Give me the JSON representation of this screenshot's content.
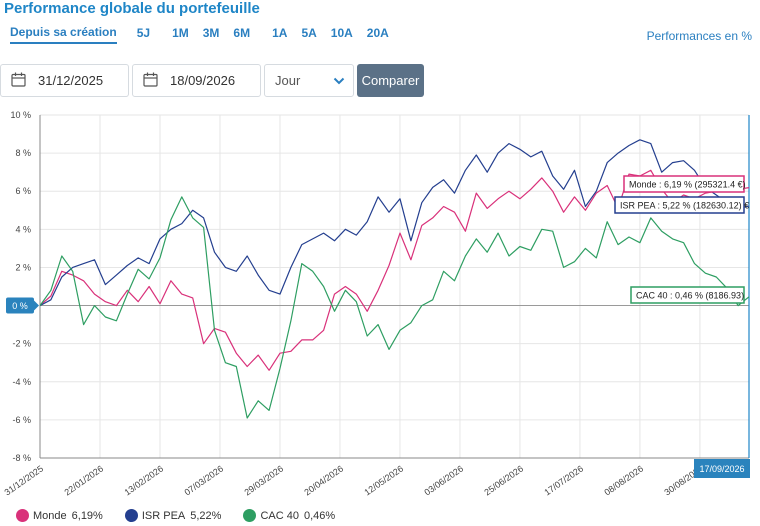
{
  "header": {
    "title": "Performance globale du portefeuille",
    "performances_note": "Performances en %"
  },
  "periods": [
    "Depuis sa création",
    "5J",
    "1M",
    "3M",
    "6M",
    "1A",
    "5A",
    "10A",
    "20A"
  ],
  "controls": {
    "date_from": "31/12/2025",
    "date_to": "18/09/2026",
    "granularity": "Jour",
    "compare_label": "Comparer"
  },
  "colors": {
    "monde": "#d9317a",
    "isr_pea": "#243f8f",
    "cac40": "#2e9e62",
    "accent": "#1f86c7",
    "button": "#5b7187"
  },
  "chart_data": {
    "type": "line",
    "ylim": [
      -8,
      10
    ],
    "yticks": [
      "10 %",
      "8 %",
      "6 %",
      "4 %",
      "2 %",
      "0 %",
      "-2 %",
      "-4 %",
      "-6 %",
      "-8 %"
    ],
    "ytick_values": [
      10,
      8,
      6,
      4,
      2,
      0,
      -2,
      -4,
      -6,
      -8
    ],
    "x_start": "2025-12-31",
    "x_end": "2026-09-17",
    "xticks": [
      {
        "label": "31/12/2025",
        "date": "2025-12-31"
      },
      {
        "label": "22/01/2026",
        "date": "2026-01-22"
      },
      {
        "label": "13/02/2026",
        "date": "2026-02-13"
      },
      {
        "label": "07/03/2026",
        "date": "2026-03-07"
      },
      {
        "label": "29/03/2026",
        "date": "2026-03-29"
      },
      {
        "label": "20/04/2026",
        "date": "2026-04-20"
      },
      {
        "label": "12/05/2026",
        "date": "2026-05-12"
      },
      {
        "label": "03/06/2026",
        "date": "2026-06-03"
      },
      {
        "label": "25/06/2026",
        "date": "2026-06-25"
      },
      {
        "label": "17/07/2026",
        "date": "2026-07-17"
      },
      {
        "label": "08/08/2026",
        "date": "2026-08-08"
      },
      {
        "label": "30/08/2026",
        "date": "2026-08-30"
      }
    ],
    "zero_label": "0 %",
    "end_date_label": "17/09/2026",
    "series": [
      {
        "name": "Monde",
        "legend_value": "6,19%",
        "color": "#d9317a",
        "end_label": "Monde : 6,19 % (295321.4 €)",
        "points": [
          [
            "2025-12-31",
            0.0
          ],
          [
            "2026-01-04",
            0.5
          ],
          [
            "2026-01-08",
            1.8
          ],
          [
            "2026-01-12",
            1.6
          ],
          [
            "2026-01-16",
            1.3
          ],
          [
            "2026-01-20",
            0.6
          ],
          [
            "2026-01-24",
            0.2
          ],
          [
            "2026-01-28",
            0.0
          ],
          [
            "2026-02-01",
            0.8
          ],
          [
            "2026-02-05",
            0.2
          ],
          [
            "2026-02-09",
            1.0
          ],
          [
            "2026-02-13",
            0.1
          ],
          [
            "2026-02-17",
            1.3
          ],
          [
            "2026-02-21",
            0.6
          ],
          [
            "2026-02-25",
            0.4
          ],
          [
            "2026-03-01",
            -2.0
          ],
          [
            "2026-03-05",
            -1.2
          ],
          [
            "2026-03-09",
            -1.4
          ],
          [
            "2026-03-13",
            -2.5
          ],
          [
            "2026-03-17",
            -3.2
          ],
          [
            "2026-03-21",
            -2.6
          ],
          [
            "2026-03-25",
            -3.4
          ],
          [
            "2026-03-29",
            -2.5
          ],
          [
            "2026-04-02",
            -2.4
          ],
          [
            "2026-04-06",
            -1.8
          ],
          [
            "2026-04-10",
            -1.8
          ],
          [
            "2026-04-14",
            -1.3
          ],
          [
            "2026-04-18",
            0.6
          ],
          [
            "2026-04-22",
            1.0
          ],
          [
            "2026-04-26",
            0.6
          ],
          [
            "2026-04-30",
            -0.3
          ],
          [
            "2026-05-04",
            0.8
          ],
          [
            "2026-05-08",
            2.1
          ],
          [
            "2026-05-12",
            3.8
          ],
          [
            "2026-05-16",
            2.4
          ],
          [
            "2026-05-20",
            4.2
          ],
          [
            "2026-05-24",
            4.6
          ],
          [
            "2026-05-28",
            5.2
          ],
          [
            "2026-06-01",
            4.9
          ],
          [
            "2026-06-05",
            3.9
          ],
          [
            "2026-06-09",
            5.9
          ],
          [
            "2026-06-13",
            5.1
          ],
          [
            "2026-06-17",
            5.6
          ],
          [
            "2026-06-21",
            6.0
          ],
          [
            "2026-06-25",
            5.6
          ],
          [
            "2026-06-29",
            6.1
          ],
          [
            "2026-07-03",
            6.7
          ],
          [
            "2026-07-07",
            6.0
          ],
          [
            "2026-07-11",
            4.9
          ],
          [
            "2026-07-15",
            5.7
          ],
          [
            "2026-07-19",
            5.0
          ],
          [
            "2026-07-23",
            5.9
          ],
          [
            "2026-07-27",
            6.3
          ],
          [
            "2026-07-31",
            5.1
          ],
          [
            "2026-08-04",
            6.9
          ],
          [
            "2026-08-08",
            6.8
          ],
          [
            "2026-08-12",
            7.1
          ],
          [
            "2026-08-16",
            6.1
          ],
          [
            "2026-08-20",
            5.4
          ],
          [
            "2026-08-24",
            5.8
          ],
          [
            "2026-08-28",
            5.6
          ],
          [
            "2026-09-01",
            5.9
          ],
          [
            "2026-09-05",
            6.0
          ],
          [
            "2026-09-09",
            6.2
          ],
          [
            "2026-09-13",
            6.1
          ],
          [
            "2026-09-17",
            6.19
          ]
        ]
      },
      {
        "name": "ISR PEA",
        "legend_value": "5,22%",
        "color": "#243f8f",
        "end_label": "ISR PEA : 5,22 % (182630.12) €",
        "points": [
          [
            "2025-12-31",
            0.0
          ],
          [
            "2026-01-04",
            0.3
          ],
          [
            "2026-01-08",
            1.5
          ],
          [
            "2026-01-12",
            2.0
          ],
          [
            "2026-01-16",
            2.2
          ],
          [
            "2026-01-20",
            2.4
          ],
          [
            "2026-01-24",
            1.1
          ],
          [
            "2026-01-28",
            1.6
          ],
          [
            "2026-02-01",
            2.1
          ],
          [
            "2026-02-05",
            2.5
          ],
          [
            "2026-02-09",
            2.2
          ],
          [
            "2026-02-13",
            3.5
          ],
          [
            "2026-02-17",
            4.0
          ],
          [
            "2026-02-21",
            4.3
          ],
          [
            "2026-02-25",
            5.0
          ],
          [
            "2026-03-01",
            4.6
          ],
          [
            "2026-03-05",
            2.8
          ],
          [
            "2026-03-09",
            2.0
          ],
          [
            "2026-03-13",
            1.8
          ],
          [
            "2026-03-17",
            2.6
          ],
          [
            "2026-03-21",
            1.6
          ],
          [
            "2026-03-25",
            0.8
          ],
          [
            "2026-03-29",
            0.6
          ],
          [
            "2026-04-02",
            2.0
          ],
          [
            "2026-04-06",
            3.2
          ],
          [
            "2026-04-10",
            3.5
          ],
          [
            "2026-04-14",
            3.8
          ],
          [
            "2026-04-18",
            3.4
          ],
          [
            "2026-04-22",
            4.0
          ],
          [
            "2026-04-26",
            3.7
          ],
          [
            "2026-04-30",
            4.4
          ],
          [
            "2026-05-04",
            5.7
          ],
          [
            "2026-05-08",
            4.9
          ],
          [
            "2026-05-12",
            5.6
          ],
          [
            "2026-05-16",
            3.4
          ],
          [
            "2026-05-20",
            5.4
          ],
          [
            "2026-05-24",
            6.2
          ],
          [
            "2026-05-28",
            6.6
          ],
          [
            "2026-06-01",
            5.9
          ],
          [
            "2026-06-05",
            7.1
          ],
          [
            "2026-06-09",
            7.9
          ],
          [
            "2026-06-13",
            7.0
          ],
          [
            "2026-06-17",
            8.0
          ],
          [
            "2026-06-21",
            8.5
          ],
          [
            "2026-06-25",
            8.2
          ],
          [
            "2026-06-29",
            7.8
          ],
          [
            "2026-07-03",
            8.1
          ],
          [
            "2026-07-07",
            6.8
          ],
          [
            "2026-07-11",
            6.1
          ],
          [
            "2026-07-15",
            7.1
          ],
          [
            "2026-07-19",
            5.2
          ],
          [
            "2026-07-23",
            6.0
          ],
          [
            "2026-07-27",
            7.5
          ],
          [
            "2026-07-31",
            8.0
          ],
          [
            "2026-08-04",
            8.4
          ],
          [
            "2026-08-08",
            8.7
          ],
          [
            "2026-08-12",
            8.5
          ],
          [
            "2026-08-16",
            7.0
          ],
          [
            "2026-08-20",
            7.5
          ],
          [
            "2026-08-24",
            7.6
          ],
          [
            "2026-08-28",
            7.1
          ],
          [
            "2026-09-01",
            6.2
          ],
          [
            "2026-09-05",
            5.8
          ],
          [
            "2026-09-09",
            5.4
          ],
          [
            "2026-09-13",
            5.1
          ],
          [
            "2026-09-17",
            5.22
          ]
        ]
      },
      {
        "name": "CAC 40",
        "legend_value": "0,46%",
        "color": "#2e9e62",
        "end_label": "CAC 40 : 0,46 % (8186.93)",
        "points": [
          [
            "2025-12-31",
            0.0
          ],
          [
            "2026-01-04",
            0.8
          ],
          [
            "2026-01-08",
            2.6
          ],
          [
            "2026-01-12",
            1.8
          ],
          [
            "2026-01-16",
            -1.0
          ],
          [
            "2026-01-20",
            0.0
          ],
          [
            "2026-01-24",
            -0.6
          ],
          [
            "2026-01-28",
            -0.8
          ],
          [
            "2026-02-01",
            0.6
          ],
          [
            "2026-02-05",
            1.9
          ],
          [
            "2026-02-09",
            1.4
          ],
          [
            "2026-02-13",
            2.5
          ],
          [
            "2026-02-17",
            4.5
          ],
          [
            "2026-02-21",
            5.7
          ],
          [
            "2026-02-25",
            4.6
          ],
          [
            "2026-03-01",
            4.1
          ],
          [
            "2026-03-05",
            -1.3
          ],
          [
            "2026-03-09",
            -3.0
          ],
          [
            "2026-03-13",
            -3.2
          ],
          [
            "2026-03-17",
            -5.9
          ],
          [
            "2026-03-21",
            -5.0
          ],
          [
            "2026-03-25",
            -5.5
          ],
          [
            "2026-03-29",
            -3.3
          ],
          [
            "2026-04-02",
            -0.8
          ],
          [
            "2026-04-06",
            2.2
          ],
          [
            "2026-04-10",
            1.8
          ],
          [
            "2026-04-14",
            1.0
          ],
          [
            "2026-04-18",
            -0.3
          ],
          [
            "2026-04-22",
            0.8
          ],
          [
            "2026-04-26",
            0.2
          ],
          [
            "2026-04-30",
            -1.6
          ],
          [
            "2026-05-04",
            -1.0
          ],
          [
            "2026-05-08",
            -2.3
          ],
          [
            "2026-05-12",
            -1.3
          ],
          [
            "2026-05-16",
            -0.9
          ],
          [
            "2026-05-20",
            0.0
          ],
          [
            "2026-05-24",
            0.3
          ],
          [
            "2026-05-28",
            1.8
          ],
          [
            "2026-06-01",
            1.3
          ],
          [
            "2026-06-05",
            2.6
          ],
          [
            "2026-06-09",
            3.5
          ],
          [
            "2026-06-13",
            2.8
          ],
          [
            "2026-06-17",
            3.8
          ],
          [
            "2026-06-21",
            2.6
          ],
          [
            "2026-06-25",
            3.1
          ],
          [
            "2026-06-29",
            2.9
          ],
          [
            "2026-07-03",
            4.0
          ],
          [
            "2026-07-07",
            3.9
          ],
          [
            "2026-07-11",
            2.0
          ],
          [
            "2026-07-15",
            2.3
          ],
          [
            "2026-07-19",
            3.0
          ],
          [
            "2026-07-23",
            2.5
          ],
          [
            "2026-07-27",
            4.4
          ],
          [
            "2026-07-31",
            3.2
          ],
          [
            "2026-08-04",
            3.6
          ],
          [
            "2026-08-08",
            3.3
          ],
          [
            "2026-08-12",
            4.6
          ],
          [
            "2026-08-16",
            3.9
          ],
          [
            "2026-08-20",
            3.5
          ],
          [
            "2026-08-24",
            3.3
          ],
          [
            "2026-08-28",
            2.2
          ],
          [
            "2026-09-01",
            1.7
          ],
          [
            "2026-09-05",
            1.5
          ],
          [
            "2026-09-09",
            0.9
          ],
          [
            "2026-09-13",
            0.0
          ],
          [
            "2026-09-17",
            0.46
          ]
        ]
      }
    ]
  }
}
